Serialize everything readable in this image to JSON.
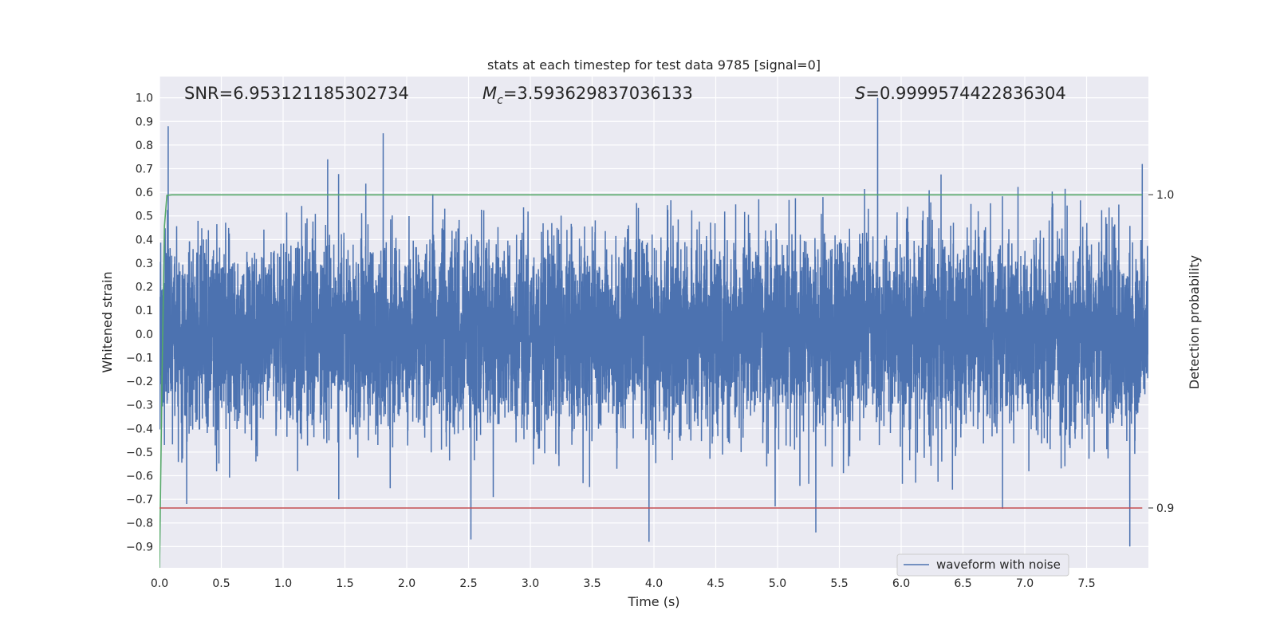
{
  "chart_data": {
    "type": "line",
    "title": "stats at each timestep for test data 9785 [signal=0]",
    "xlabel": "Time (s)",
    "ylabel": "Whitened strain",
    "ylabel_right": "Detection probability",
    "xlim": [
      0.0,
      8.0
    ],
    "ylim": [
      -0.99,
      1.09
    ],
    "ylim_right": [
      0.8809,
      1.0377
    ],
    "x_ticks": [
      "0.0",
      "0.5",
      "1.0",
      "1.5",
      "2.0",
      "2.5",
      "3.0",
      "3.5",
      "4.0",
      "4.5",
      "5.0",
      "5.5",
      "6.0",
      "6.5",
      "7.0",
      "7.5"
    ],
    "y_ticks": [
      "1.0",
      "0.9",
      "0.8",
      "0.7",
      "0.6",
      "0.5",
      "0.4",
      "0.3",
      "0.2",
      "0.1",
      "0.0",
      "−0.1",
      "−0.2",
      "−0.3",
      "−0.4",
      "−0.5",
      "−0.6",
      "−0.7",
      "−0.8",
      "−0.9"
    ],
    "y_ticks_right": [
      "1.0",
      "0.9"
    ],
    "annotations": {
      "snr": "SNR=6.953121185302734",
      "mc_symbol": "M",
      "mc_sub": "c",
      "mc_value": "=3.593629837036133",
      "s_symbol": "S",
      "s_value": "=0.9999574422836304"
    },
    "legend": "waveform with noise",
    "grid": true,
    "legend_position": "lower-right",
    "series": [
      {
        "name": "waveform with noise",
        "axis": "left",
        "color": "#4c72b0",
        "sample_rate": 1024,
        "noise_std": 0.2,
        "peaks": [
          {
            "t": 0.07,
            "v": 0.88
          },
          {
            "t": 0.04,
            "v": -0.47
          },
          {
            "t": 1.81,
            "v": 0.85
          },
          {
            "t": 5.81,
            "v": 1.0
          },
          {
            "t": 1.36,
            "v": 0.74
          },
          {
            "t": 7.95,
            "v": 0.72
          },
          {
            "t": 3.96,
            "v": -0.88
          },
          {
            "t": 7.85,
            "v": -0.9
          },
          {
            "t": 2.52,
            "v": -0.87
          },
          {
            "t": 5.31,
            "v": -0.84
          },
          {
            "t": 6.82,
            "v": -0.74
          },
          {
            "t": 4.98,
            "v": -0.73
          },
          {
            "t": 0.22,
            "v": -0.72
          },
          {
            "t": 1.45,
            "v": -0.7
          },
          {
            "t": 2.7,
            "v": -0.69
          }
        ]
      },
      {
        "name": "detection probability",
        "axis": "right",
        "color": "#55a868",
        "x": [
          0.0,
          0.02,
          0.04,
          0.06,
          0.1,
          7.95
        ],
        "y": [
          0.8809,
          0.94,
          0.99,
          0.9998,
          0.99995,
          0.99996
        ]
      },
      {
        "name": "threshold",
        "axis": "right",
        "color": "#c44e52",
        "x": [
          0.0,
          7.95
        ],
        "y": [
          0.9,
          0.9
        ]
      }
    ]
  }
}
